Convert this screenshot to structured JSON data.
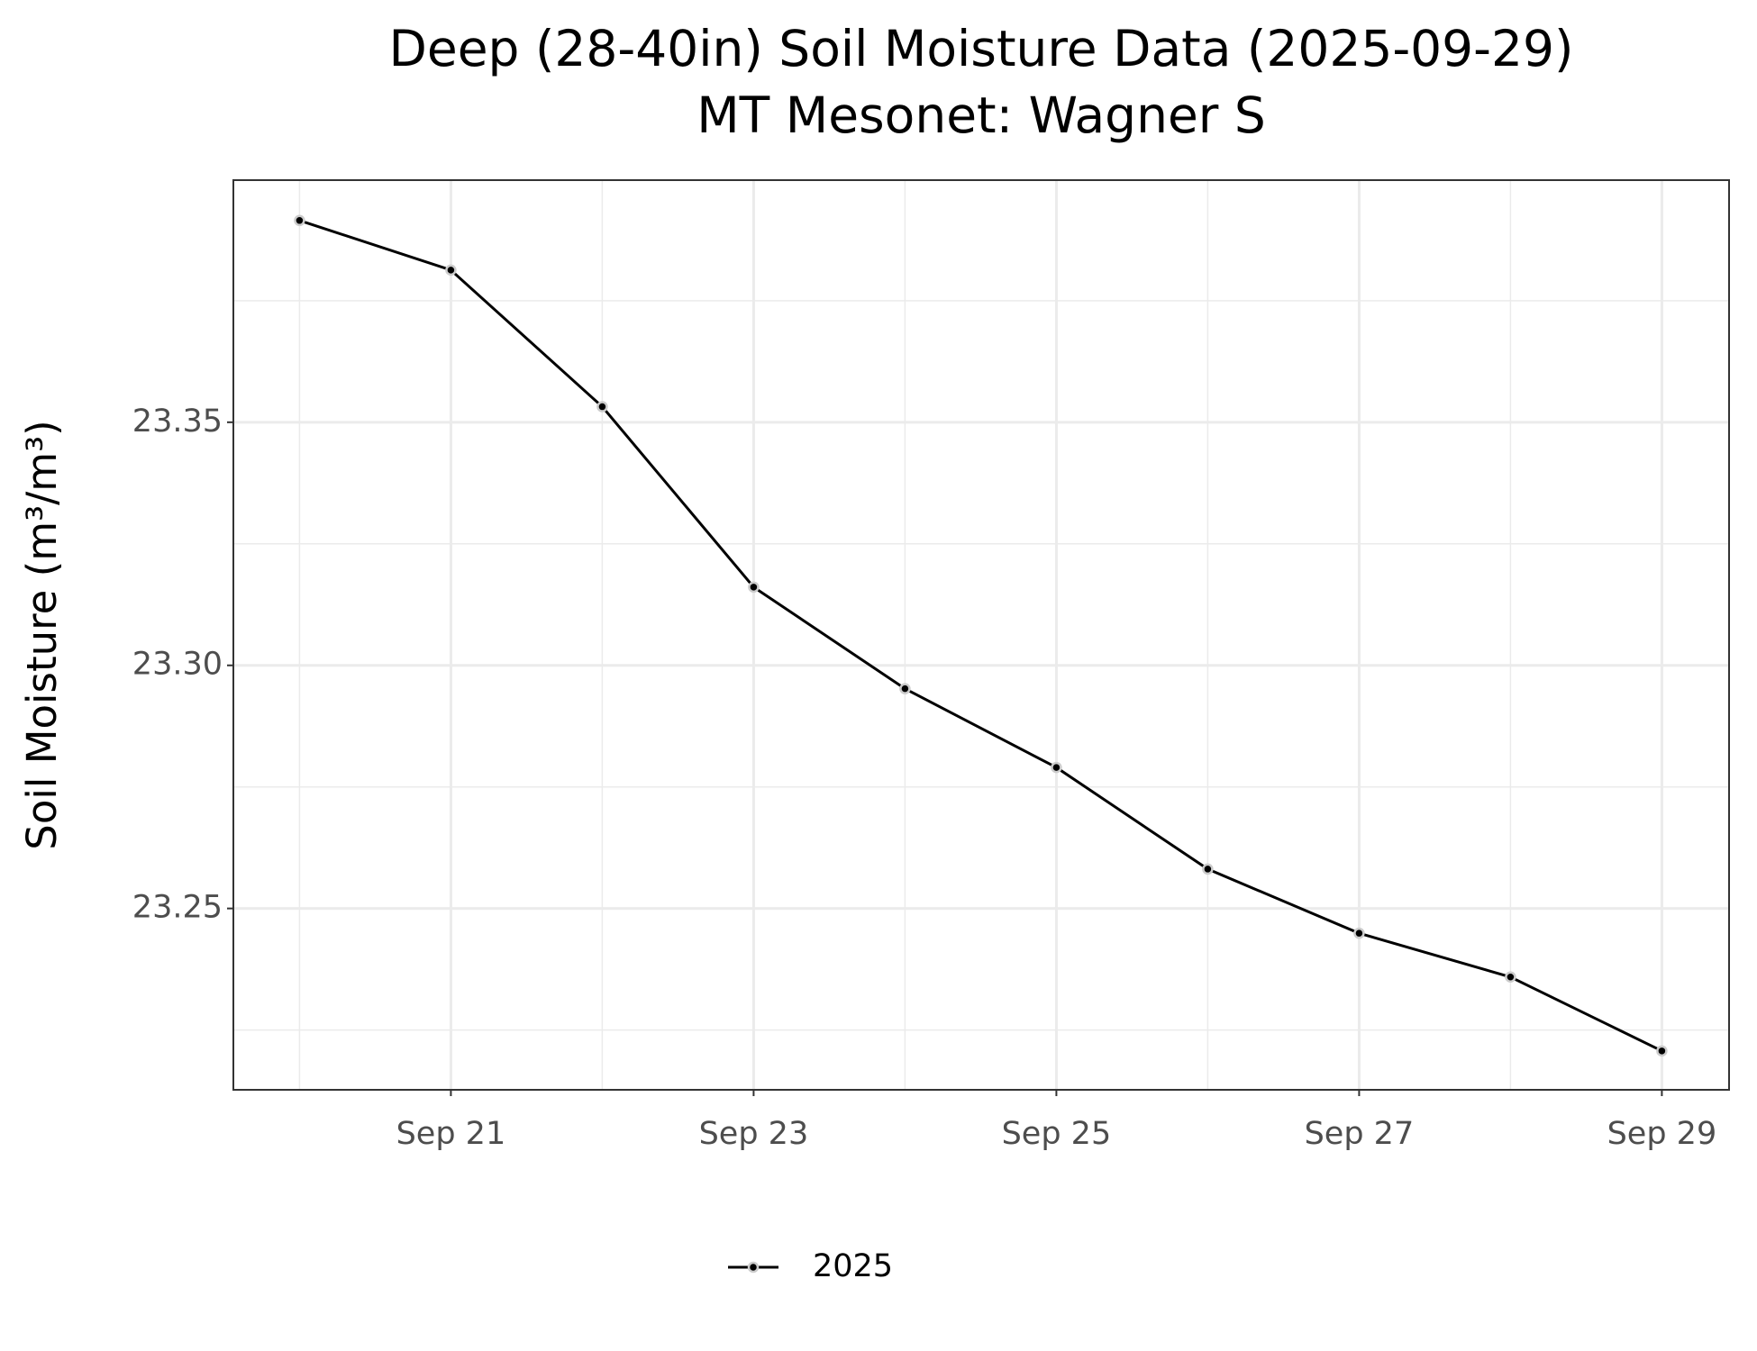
{
  "chart_data": {
    "type": "line",
    "title": "Deep (28-40in) Soil Moisture Data (2025-09-29)",
    "subtitle": "MT Mesonet: Wagner S",
    "y_label": "Soil Moisture (m³/m³)",
    "x": [
      20,
      21,
      22,
      23,
      24,
      25,
      26,
      27,
      28,
      29
    ],
    "series": [
      {
        "name": "2025",
        "color": "#000000",
        "values": [
          23.3915,
          23.3813,
          23.3532,
          23.3161,
          23.2952,
          23.279,
          23.2581,
          23.2449,
          23.2359,
          23.2207
        ]
      }
    ],
    "xlim": [
      19.563,
      29.444
    ],
    "xticks": [
      {
        "value": 21,
        "label": "Sep 21"
      },
      {
        "value": 23,
        "label": "Sep 23"
      },
      {
        "value": 25,
        "label": "Sep 25"
      },
      {
        "value": 27,
        "label": "Sep 27"
      },
      {
        "value": 29,
        "label": "Sep 29"
      }
    ],
    "ylim": [
      23.2127,
      23.3998
    ],
    "yticks": [
      {
        "value": 23.25,
        "label": "23.25"
      },
      {
        "value": 23.3,
        "label": "23.30"
      },
      {
        "value": 23.35,
        "label": "23.35"
      }
    ],
    "grid": true,
    "legend": "bottom"
  }
}
